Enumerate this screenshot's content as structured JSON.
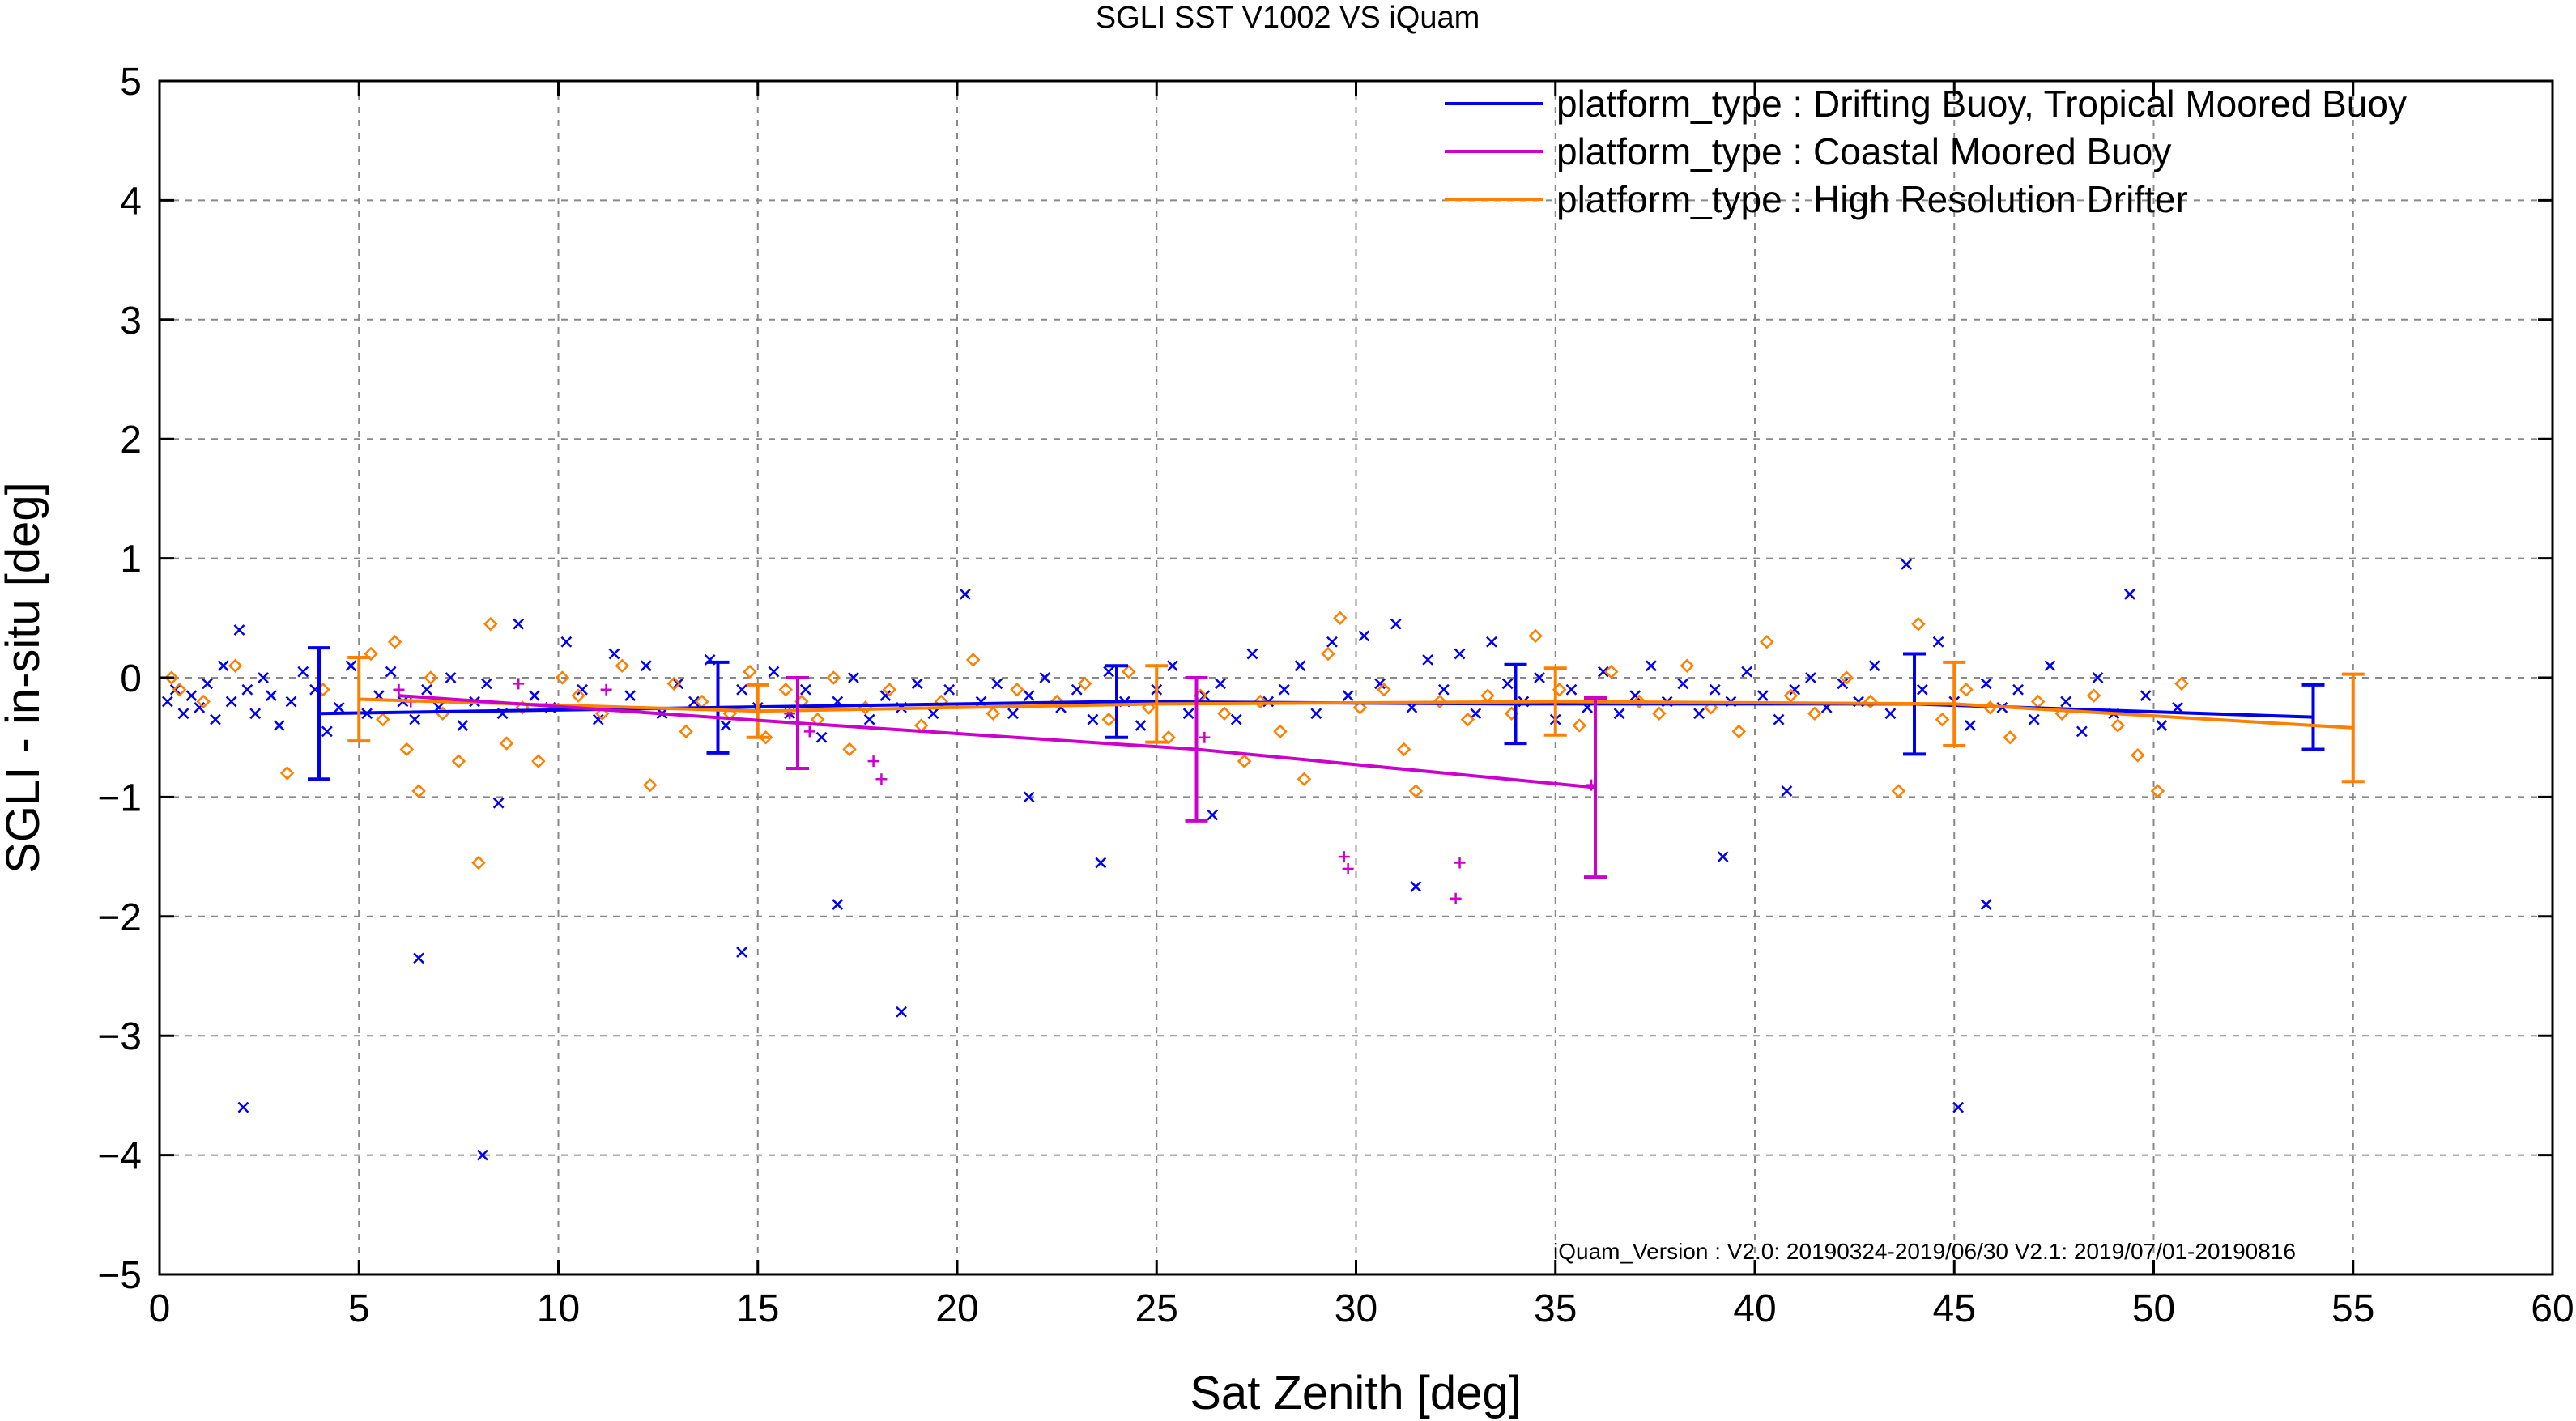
{
  "chart_data": {
    "type": "scatter",
    "title": "SGLI SST V1002 VS iQuam",
    "xlabel": "Sat Zenith [deg]",
    "ylabel": "SGLI - in-situ [deg]",
    "xlim": [
      0,
      60
    ],
    "ylim": [
      -5,
      5
    ],
    "xticks": [
      0,
      5,
      10,
      15,
      20,
      25,
      30,
      35,
      40,
      45,
      50,
      55,
      60
    ],
    "yticks": [
      -5,
      -4,
      -3,
      -2,
      -1,
      0,
      1,
      2,
      3,
      4,
      5
    ],
    "xtick_labels": [
      "0",
      "5",
      "10",
      "15",
      "20",
      "25",
      "30",
      "35",
      "40",
      "45",
      "50",
      "55",
      "60"
    ],
    "ytick_labels": [
      "−5",
      "−4",
      "−3",
      "−2",
      "−1",
      "0",
      "1",
      "2",
      "3",
      "4",
      "5"
    ],
    "grid": true,
    "legend_position": "top-right",
    "annotation": "iQuam_Version :  V2.0: 20190324-2019/06/30 V2.1: 2019/07/01-20190816",
    "series": [
      {
        "name": "platform_type : Drifting Buoy, Tropical Moored Buoy",
        "color": "#0000ee",
        "marker": "x",
        "mean_line": {
          "x": [
            4,
            14,
            24,
            34,
            44,
            54
          ],
          "y": [
            -0.3,
            -0.25,
            -0.2,
            -0.22,
            -0.22,
            -0.33
          ],
          "err": [
            0.55,
            0.38,
            0.3,
            0.33,
            0.42,
            0.27
          ]
        },
        "points": [
          [
            0.2,
            -0.2
          ],
          [
            0.4,
            -0.1
          ],
          [
            0.6,
            -0.3
          ],
          [
            0.8,
            -0.15
          ],
          [
            1.0,
            -0.25
          ],
          [
            1.2,
            -0.05
          ],
          [
            1.4,
            -0.35
          ],
          [
            1.6,
            0.1
          ],
          [
            1.8,
            -0.2
          ],
          [
            2.0,
            0.4
          ],
          [
            2.2,
            -0.1
          ],
          [
            2.4,
            -0.3
          ],
          [
            2.6,
            0.0
          ],
          [
            2.8,
            -0.15
          ],
          [
            3.0,
            -0.4
          ],
          [
            3.3,
            -0.2
          ],
          [
            3.6,
            0.05
          ],
          [
            3.9,
            -0.1
          ],
          [
            4.2,
            -0.45
          ],
          [
            4.5,
            -0.25
          ],
          [
            4.8,
            0.1
          ],
          [
            5.2,
            -0.3
          ],
          [
            5.5,
            -0.15
          ],
          [
            5.8,
            0.05
          ],
          [
            6.1,
            -0.2
          ],
          [
            6.4,
            -0.35
          ],
          [
            6.7,
            -0.1
          ],
          [
            7.0,
            -0.25
          ],
          [
            7.3,
            0.0
          ],
          [
            7.6,
            -0.4
          ],
          [
            7.9,
            -0.2
          ],
          [
            8.2,
            -0.05
          ],
          [
            8.6,
            -0.3
          ],
          [
            9.0,
            0.45
          ],
          [
            9.4,
            -0.15
          ],
          [
            9.8,
            -0.25
          ],
          [
            10.2,
            0.3
          ],
          [
            10.6,
            -0.1
          ],
          [
            11.0,
            -0.35
          ],
          [
            11.4,
            0.2
          ],
          [
            11.8,
            -0.15
          ],
          [
            12.2,
            0.1
          ],
          [
            12.6,
            -0.3
          ],
          [
            13.0,
            -0.05
          ],
          [
            13.4,
            -0.2
          ],
          [
            13.8,
            0.15
          ],
          [
            14.2,
            -0.4
          ],
          [
            14.6,
            -0.1
          ],
          [
            15.0,
            -0.25
          ],
          [
            15.4,
            0.05
          ],
          [
            15.8,
            -0.3
          ],
          [
            16.2,
            -0.1
          ],
          [
            16.6,
            -0.5
          ],
          [
            17.0,
            -0.2
          ],
          [
            17.4,
            0.0
          ],
          [
            17.8,
            -0.35
          ],
          [
            18.2,
            -0.15
          ],
          [
            18.6,
            -0.25
          ],
          [
            19.0,
            -0.05
          ],
          [
            19.4,
            -0.3
          ],
          [
            19.8,
            -0.1
          ],
          [
            20.2,
            0.7
          ],
          [
            20.6,
            -0.2
          ],
          [
            21.0,
            -0.05
          ],
          [
            21.4,
            -0.3
          ],
          [
            21.8,
            -0.15
          ],
          [
            22.2,
            0.0
          ],
          [
            22.6,
            -0.25
          ],
          [
            23.0,
            -0.1
          ],
          [
            23.4,
            -0.35
          ],
          [
            23.8,
            0.05
          ],
          [
            24.2,
            -0.2
          ],
          [
            24.6,
            -0.4
          ],
          [
            25.0,
            -0.1
          ],
          [
            25.4,
            0.1
          ],
          [
            25.8,
            -0.3
          ],
          [
            26.2,
            -0.15
          ],
          [
            26.6,
            -0.05
          ],
          [
            27.0,
            -0.35
          ],
          [
            27.4,
            0.2
          ],
          [
            27.8,
            -0.2
          ],
          [
            28.2,
            -0.1
          ],
          [
            28.6,
            0.1
          ],
          [
            29.0,
            -0.3
          ],
          [
            29.4,
            0.3
          ],
          [
            29.8,
            -0.15
          ],
          [
            30.2,
            0.35
          ],
          [
            30.6,
            -0.05
          ],
          [
            31.0,
            0.45
          ],
          [
            31.4,
            -0.25
          ],
          [
            31.8,
            0.15
          ],
          [
            32.2,
            -0.1
          ],
          [
            32.6,
            0.2
          ],
          [
            33.0,
            -0.3
          ],
          [
            33.4,
            0.3
          ],
          [
            33.8,
            -0.05
          ],
          [
            34.2,
            -0.2
          ],
          [
            34.6,
            0.0
          ],
          [
            35.0,
            -0.35
          ],
          [
            35.4,
            -0.1
          ],
          [
            35.8,
            -0.25
          ],
          [
            36.2,
            0.05
          ],
          [
            36.6,
            -0.3
          ],
          [
            37.0,
            -0.15
          ],
          [
            37.4,
            0.1
          ],
          [
            37.8,
            -0.2
          ],
          [
            38.2,
            -0.05
          ],
          [
            38.6,
            -0.3
          ],
          [
            39.0,
            -0.1
          ],
          [
            39.4,
            -0.2
          ],
          [
            39.8,
            0.05
          ],
          [
            40.2,
            -0.15
          ],
          [
            40.6,
            -0.35
          ],
          [
            41.0,
            -0.1
          ],
          [
            41.4,
            0.0
          ],
          [
            41.8,
            -0.25
          ],
          [
            42.2,
            -0.05
          ],
          [
            42.6,
            -0.2
          ],
          [
            43.0,
            0.1
          ],
          [
            43.4,
            -0.3
          ],
          [
            43.8,
            0.95
          ],
          [
            44.2,
            -0.1
          ],
          [
            44.6,
            0.3
          ],
          [
            45.0,
            -0.2
          ],
          [
            45.4,
            -0.4
          ],
          [
            45.8,
            -0.05
          ],
          [
            46.2,
            -0.25
          ],
          [
            46.6,
            -0.1
          ],
          [
            47.0,
            -0.35
          ],
          [
            47.4,
            0.1
          ],
          [
            47.8,
            -0.2
          ],
          [
            48.2,
            -0.45
          ],
          [
            48.6,
            0.0
          ],
          [
            49.0,
            -0.3
          ],
          [
            49.4,
            0.7
          ],
          [
            49.8,
            -0.15
          ],
          [
            50.2,
            -0.4
          ],
          [
            50.6,
            -0.25
          ],
          [
            2.1,
            -3.6
          ],
          [
            8.1,
            -4.0
          ],
          [
            6.5,
            -2.35
          ],
          [
            14.6,
            -2.3
          ],
          [
            17.0,
            -1.9
          ],
          [
            18.6,
            -2.8
          ],
          [
            23.6,
            -1.55
          ],
          [
            26.4,
            -1.15
          ],
          [
            31.5,
            -1.75
          ],
          [
            39.2,
            -1.5
          ],
          [
            45.8,
            -1.9
          ],
          [
            45.1,
            -3.6
          ],
          [
            8.5,
            -1.05
          ],
          [
            21.8,
            -1.0
          ],
          [
            40.8,
            -0.95
          ]
        ]
      },
      {
        "name": "platform_type : Coastal Moored Buoy",
        "color": "#cc00cc",
        "marker": "+",
        "mean_line": {
          "x": [
            6,
            16,
            26,
            36
          ],
          "y": [
            -0.15,
            -0.38,
            -0.6,
            -0.92
          ],
          "err": [
            0.0,
            0.38,
            0.6,
            0.75
          ]
        },
        "points": [
          [
            6.0,
            -0.1
          ],
          [
            6.3,
            -0.2
          ],
          [
            9.0,
            -0.05
          ],
          [
            11.2,
            -0.1
          ],
          [
            15.8,
            -0.3
          ],
          [
            16.3,
            -0.45
          ],
          [
            17.9,
            -0.7
          ],
          [
            18.1,
            -0.85
          ],
          [
            26.2,
            -0.5
          ],
          [
            29.7,
            -1.5
          ],
          [
            29.8,
            -1.6
          ],
          [
            32.6,
            -1.55
          ],
          [
            32.5,
            -1.85
          ],
          [
            35.9,
            -0.9
          ]
        ]
      },
      {
        "name": "platform_type : High Resolution Drifter",
        "color": "#ff8000",
        "marker": "diamond",
        "mean_line": {
          "x": [
            5,
            15,
            25,
            35,
            45,
            55
          ],
          "y": [
            -0.18,
            -0.28,
            -0.22,
            -0.2,
            -0.22,
            -0.42
          ],
          "err": [
            0.35,
            0.22,
            0.32,
            0.28,
            0.35,
            0.45
          ]
        },
        "points": [
          [
            0.3,
            0.0
          ],
          [
            0.5,
            -0.1
          ],
          [
            1.1,
            -0.2
          ],
          [
            1.9,
            0.1
          ],
          [
            3.2,
            -0.8
          ],
          [
            4.1,
            -0.1
          ],
          [
            5.3,
            0.2
          ],
          [
            5.6,
            -0.35
          ],
          [
            5.9,
            0.3
          ],
          [
            6.2,
            -0.6
          ],
          [
            6.5,
            -0.95
          ],
          [
            6.8,
            0.0
          ],
          [
            7.1,
            -0.3
          ],
          [
            7.5,
            -0.7
          ],
          [
            8.0,
            -1.55
          ],
          [
            8.3,
            0.45
          ],
          [
            8.7,
            -0.55
          ],
          [
            9.1,
            -0.25
          ],
          [
            9.5,
            -0.7
          ],
          [
            10.1,
            0.0
          ],
          [
            10.5,
            -0.15
          ],
          [
            11.1,
            -0.3
          ],
          [
            11.6,
            0.1
          ],
          [
            12.3,
            -0.9
          ],
          [
            12.9,
            -0.05
          ],
          [
            13.2,
            -0.45
          ],
          [
            13.6,
            -0.2
          ],
          [
            14.3,
            -0.3
          ],
          [
            14.8,
            0.05
          ],
          [
            15.2,
            -0.5
          ],
          [
            15.7,
            -0.1
          ],
          [
            16.1,
            -0.2
          ],
          [
            16.5,
            -0.35
          ],
          [
            16.9,
            0.0
          ],
          [
            17.3,
            -0.6
          ],
          [
            17.7,
            -0.25
          ],
          [
            18.3,
            -0.1
          ],
          [
            19.1,
            -0.4
          ],
          [
            19.6,
            -0.2
          ],
          [
            20.4,
            0.15
          ],
          [
            20.9,
            -0.3
          ],
          [
            21.5,
            -0.1
          ],
          [
            22.5,
            -0.2
          ],
          [
            23.2,
            -0.05
          ],
          [
            23.8,
            -0.35
          ],
          [
            24.3,
            0.05
          ],
          [
            24.8,
            -0.25
          ],
          [
            25.3,
            -0.5
          ],
          [
            26.1,
            -0.15
          ],
          [
            26.7,
            -0.3
          ],
          [
            27.2,
            -0.7
          ],
          [
            27.6,
            -0.2
          ],
          [
            28.1,
            -0.45
          ],
          [
            28.7,
            -0.85
          ],
          [
            29.3,
            0.2
          ],
          [
            29.6,
            0.5
          ],
          [
            30.1,
            -0.25
          ],
          [
            30.7,
            -0.1
          ],
          [
            31.2,
            -0.6
          ],
          [
            31.5,
            -0.95
          ],
          [
            32.1,
            -0.2
          ],
          [
            32.8,
            -0.35
          ],
          [
            33.3,
            -0.15
          ],
          [
            33.9,
            -0.3
          ],
          [
            34.5,
            0.35
          ],
          [
            35.1,
            -0.1
          ],
          [
            35.6,
            -0.4
          ],
          [
            36.4,
            0.05
          ],
          [
            37.1,
            -0.2
          ],
          [
            37.6,
            -0.3
          ],
          [
            38.3,
            0.1
          ],
          [
            38.9,
            -0.25
          ],
          [
            39.6,
            -0.45
          ],
          [
            40.3,
            0.3
          ],
          [
            40.9,
            -0.15
          ],
          [
            41.5,
            -0.3
          ],
          [
            42.3,
            0.0
          ],
          [
            42.9,
            -0.2
          ],
          [
            43.6,
            -0.95
          ],
          [
            44.1,
            0.45
          ],
          [
            44.7,
            -0.35
          ],
          [
            45.3,
            -0.1
          ],
          [
            45.9,
            -0.25
          ],
          [
            46.4,
            -0.5
          ],
          [
            47.1,
            -0.2
          ],
          [
            47.7,
            -0.3
          ],
          [
            48.5,
            -0.15
          ],
          [
            49.1,
            -0.4
          ],
          [
            49.6,
            -0.65
          ],
          [
            50.1,
            -0.95
          ],
          [
            50.7,
            -0.05
          ]
        ]
      }
    ]
  }
}
